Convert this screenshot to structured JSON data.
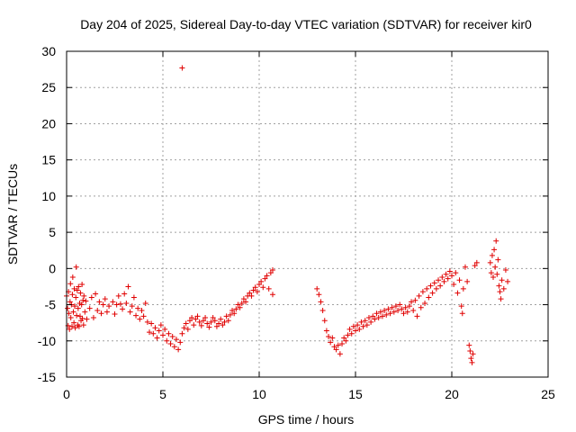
{
  "chart_data": {
    "type": "scatter",
    "title": "Day 204 of 2025, Sidereal Day-to-day VTEC variation (SDTVAR) for receiver kir0",
    "xlabel": "GPS time / hours",
    "ylabel": "SDTVAR / TECUs",
    "xlim": [
      0,
      25
    ],
    "ylim": [
      -15,
      30
    ],
    "xticks": [
      "0",
      "5",
      "10",
      "15",
      "20",
      "25"
    ],
    "yticks": [
      "-15",
      "-10",
      "-5",
      "0",
      "5",
      "10",
      "15",
      "20",
      "25",
      "30"
    ],
    "grid": true,
    "marker": "+",
    "color": "#e00000",
    "series": [
      {
        "name": "kir0",
        "points": [
          [
            0.0,
            -3.8
          ],
          [
            0.05,
            -5.5
          ],
          [
            0.08,
            -7.9
          ],
          [
            0.1,
            -3.2
          ],
          [
            0.12,
            -6.2
          ],
          [
            0.15,
            -8.4
          ],
          [
            0.18,
            -4.6
          ],
          [
            0.2,
            -2.1
          ],
          [
            0.22,
            -6.8
          ],
          [
            0.25,
            -5.0
          ],
          [
            0.28,
            -8.0
          ],
          [
            0.3,
            -3.6
          ],
          [
            0.32,
            -1.2
          ],
          [
            0.35,
            -6.0
          ],
          [
            0.38,
            -7.5
          ],
          [
            0.4,
            -2.8
          ],
          [
            0.42,
            -5.2
          ],
          [
            0.45,
            -8.2
          ],
          [
            0.48,
            -4.0
          ],
          [
            0.5,
            0.2
          ],
          [
            0.52,
            -6.5
          ],
          [
            0.55,
            -3.0
          ],
          [
            0.58,
            -7.8
          ],
          [
            0.6,
            -5.5
          ],
          [
            0.62,
            -2.5
          ],
          [
            0.65,
            -8.0
          ],
          [
            0.68,
            -4.8
          ],
          [
            0.7,
            -6.6
          ],
          [
            0.72,
            -3.4
          ],
          [
            0.75,
            -7.2
          ],
          [
            0.78,
            -5.0
          ],
          [
            0.8,
            -2.2
          ],
          [
            0.82,
            -6.9
          ],
          [
            0.85,
            -4.4
          ],
          [
            0.88,
            -7.8
          ],
          [
            0.9,
            -3.8
          ],
          [
            0.95,
            -6.0
          ],
          [
            1.0,
            -4.5
          ],
          [
            1.05,
            -7.0
          ],
          [
            1.2,
            -5.5
          ],
          [
            1.3,
            -4.0
          ],
          [
            1.4,
            -6.8
          ],
          [
            1.5,
            -3.5
          ],
          [
            1.6,
            -5.8
          ],
          [
            1.7,
            -4.6
          ],
          [
            1.8,
            -6.2
          ],
          [
            1.9,
            -5.0
          ],
          [
            2.0,
            -4.2
          ],
          [
            2.1,
            -6.0
          ],
          [
            2.2,
            -5.2
          ],
          [
            2.4,
            -4.6
          ],
          [
            2.5,
            -6.3
          ],
          [
            2.6,
            -5.0
          ],
          [
            2.7,
            -3.8
          ],
          [
            2.8,
            -4.9
          ],
          [
            2.9,
            -5.6
          ],
          [
            3.0,
            -3.5
          ],
          [
            3.1,
            -4.8
          ],
          [
            3.2,
            -2.5
          ],
          [
            3.3,
            -6.0
          ],
          [
            3.4,
            -5.2
          ],
          [
            3.5,
            -4.0
          ],
          [
            3.6,
            -6.5
          ],
          [
            3.7,
            -5.5
          ],
          [
            3.8,
            -7.0
          ],
          [
            3.9,
            -5.8
          ],
          [
            4.0,
            -6.6
          ],
          [
            4.1,
            -4.8
          ],
          [
            4.2,
            -7.4
          ],
          [
            4.3,
            -8.8
          ],
          [
            4.4,
            -7.6
          ],
          [
            4.5,
            -9.0
          ],
          [
            4.6,
            -8.2
          ],
          [
            4.7,
            -9.6
          ],
          [
            4.8,
            -8.6
          ],
          [
            4.9,
            -7.8
          ],
          [
            5.0,
            -9.2
          ],
          [
            5.1,
            -8.4
          ],
          [
            5.2,
            -10.0
          ],
          [
            5.3,
            -9.0
          ],
          [
            5.4,
            -10.4
          ],
          [
            5.5,
            -9.4
          ],
          [
            5.6,
            -10.8
          ],
          [
            5.7,
            -9.8
          ],
          [
            5.8,
            -11.2
          ],
          [
            5.9,
            -10.2
          ],
          [
            6.0,
            -9.0
          ],
          [
            6.0,
            27.7
          ],
          [
            6.1,
            -8.2
          ],
          [
            6.2,
            -7.6
          ],
          [
            6.3,
            -8.4
          ],
          [
            6.4,
            -7.2
          ],
          [
            6.5,
            -6.8
          ],
          [
            6.6,
            -7.8
          ],
          [
            6.7,
            -7.0
          ],
          [
            6.8,
            -6.6
          ],
          [
            6.9,
            -7.4
          ],
          [
            7.0,
            -7.9
          ],
          [
            7.1,
            -7.2
          ],
          [
            7.2,
            -6.8
          ],
          [
            7.3,
            -7.6
          ],
          [
            7.4,
            -8.1
          ],
          [
            7.5,
            -7.4
          ],
          [
            7.6,
            -6.8
          ],
          [
            7.7,
            -7.2
          ],
          [
            7.8,
            -8.0
          ],
          [
            7.9,
            -7.6
          ],
          [
            8.0,
            -7.0
          ],
          [
            8.1,
            -7.8
          ],
          [
            8.2,
            -7.4
          ],
          [
            8.3,
            -6.6
          ],
          [
            8.4,
            -7.2
          ],
          [
            8.5,
            -6.4
          ],
          [
            8.6,
            -5.8
          ],
          [
            8.7,
            -6.2
          ],
          [
            8.8,
            -5.6
          ],
          [
            8.9,
            -5.0
          ],
          [
            9.0,
            -5.4
          ],
          [
            9.1,
            -4.8
          ],
          [
            9.2,
            -4.2
          ],
          [
            9.3,
            -4.6
          ],
          [
            9.4,
            -3.8
          ],
          [
            9.5,
            -3.4
          ],
          [
            9.6,
            -3.8
          ],
          [
            9.7,
            -3.0
          ],
          [
            9.8,
            -2.6
          ],
          [
            9.9,
            -3.2
          ],
          [
            10.0,
            -2.2
          ],
          [
            10.1,
            -1.8
          ],
          [
            10.2,
            -2.6
          ],
          [
            10.3,
            -1.4
          ],
          [
            10.4,
            -1.0
          ],
          [
            10.5,
            -2.8
          ],
          [
            10.6,
            -0.6
          ],
          [
            10.7,
            -3.6
          ],
          [
            10.7,
            -0.2
          ],
          [
            13.0,
            -2.8
          ],
          [
            13.1,
            -3.6
          ],
          [
            13.2,
            -4.6
          ],
          [
            13.3,
            -5.8
          ],
          [
            13.4,
            -7.2
          ],
          [
            13.5,
            -8.6
          ],
          [
            13.6,
            -9.4
          ],
          [
            13.7,
            -10.2
          ],
          [
            13.8,
            -9.6
          ],
          [
            13.9,
            -10.8
          ],
          [
            14.0,
            -11.2
          ],
          [
            14.1,
            -10.6
          ],
          [
            14.2,
            -11.8
          ],
          [
            14.3,
            -10.4
          ],
          [
            14.4,
            -9.6
          ],
          [
            14.5,
            -10.0
          ],
          [
            14.6,
            -9.2
          ],
          [
            14.7,
            -8.4
          ],
          [
            14.8,
            -9.0
          ],
          [
            14.9,
            -8.0
          ],
          [
            15.0,
            -8.6
          ],
          [
            15.1,
            -7.8
          ],
          [
            15.2,
            -8.4
          ],
          [
            15.3,
            -7.4
          ],
          [
            15.4,
            -8.0
          ],
          [
            15.5,
            -7.2
          ],
          [
            15.6,
            -7.8
          ],
          [
            15.7,
            -6.8
          ],
          [
            15.8,
            -7.4
          ],
          [
            15.9,
            -6.6
          ],
          [
            16.0,
            -7.0
          ],
          [
            16.1,
            -6.2
          ],
          [
            16.2,
            -6.8
          ],
          [
            16.3,
            -6.0
          ],
          [
            16.4,
            -6.6
          ],
          [
            16.5,
            -5.8
          ],
          [
            16.6,
            -6.4
          ],
          [
            16.7,
            -5.6
          ],
          [
            16.8,
            -6.2
          ],
          [
            16.9,
            -5.4
          ],
          [
            17.0,
            -6.0
          ],
          [
            17.1,
            -5.2
          ],
          [
            17.2,
            -5.8
          ],
          [
            17.3,
            -5.0
          ],
          [
            17.4,
            -5.6
          ],
          [
            17.5,
            -6.2
          ],
          [
            17.6,
            -5.4
          ],
          [
            17.7,
            -6.0
          ],
          [
            17.8,
            -5.2
          ],
          [
            17.9,
            -4.6
          ],
          [
            18.0,
            -5.8
          ],
          [
            18.1,
            -4.4
          ],
          [
            18.2,
            -6.6
          ],
          [
            18.3,
            -3.8
          ],
          [
            18.4,
            -5.4
          ],
          [
            18.5,
            -3.2
          ],
          [
            18.6,
            -4.8
          ],
          [
            18.7,
            -2.8
          ],
          [
            18.8,
            -4.0
          ],
          [
            18.9,
            -2.4
          ],
          [
            19.0,
            -3.4
          ],
          [
            19.1,
            -2.0
          ],
          [
            19.2,
            -2.8
          ],
          [
            19.3,
            -1.6
          ],
          [
            19.4,
            -2.4
          ],
          [
            19.5,
            -1.2
          ],
          [
            19.6,
            -1.8
          ],
          [
            19.7,
            -0.8
          ],
          [
            19.8,
            -1.4
          ],
          [
            19.9,
            -0.4
          ],
          [
            20.0,
            -1.0
          ],
          [
            20.1,
            -2.2
          ],
          [
            20.2,
            -0.6
          ],
          [
            20.3,
            -3.4
          ],
          [
            20.4,
            -1.6
          ],
          [
            20.5,
            -5.2
          ],
          [
            20.55,
            -6.2
          ],
          [
            20.6,
            -2.8
          ],
          [
            20.7,
            0.2
          ],
          [
            20.8,
            -1.8
          ],
          [
            20.9,
            -10.6
          ],
          [
            20.95,
            -11.4
          ],
          [
            21.0,
            -12.4
          ],
          [
            21.05,
            -13.0
          ],
          [
            21.1,
            -11.8
          ],
          [
            21.2,
            0.4
          ],
          [
            21.3,
            0.8
          ],
          [
            22.0,
            0.8
          ],
          [
            22.05,
            -0.6
          ],
          [
            22.1,
            1.8
          ],
          [
            22.15,
            -1.2
          ],
          [
            22.2,
            2.6
          ],
          [
            22.25,
            0.2
          ],
          [
            22.3,
            3.8
          ],
          [
            22.35,
            -0.8
          ],
          [
            22.4,
            1.2
          ],
          [
            22.45,
            -2.4
          ],
          [
            22.5,
            -3.2
          ],
          [
            22.55,
            -4.2
          ],
          [
            22.6,
            -1.6
          ],
          [
            22.7,
            -2.8
          ],
          [
            22.8,
            -0.2
          ],
          [
            22.9,
            -1.8
          ]
        ]
      }
    ]
  }
}
